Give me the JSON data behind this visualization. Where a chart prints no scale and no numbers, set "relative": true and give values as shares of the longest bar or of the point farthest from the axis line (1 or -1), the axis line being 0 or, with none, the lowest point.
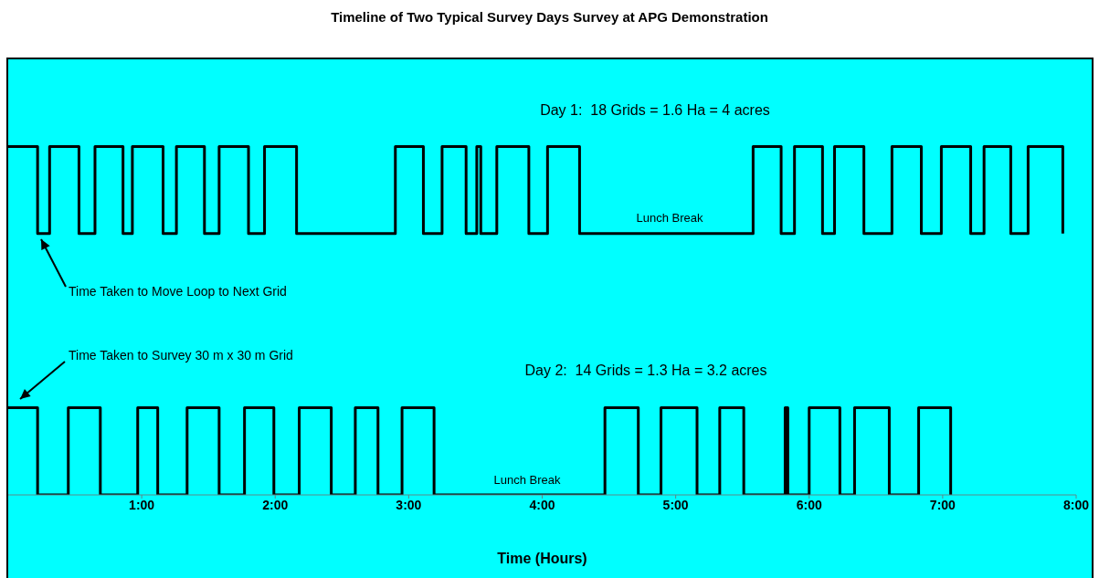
{
  "chart_data": {
    "type": "step",
    "title": "Timeline of Two Typical Survey Days Survey at APG Demonstration",
    "xlabel": "Time (Hours)",
    "relative": true,
    "xlim": [
      0,
      8
    ],
    "xticks": [
      {
        "value": 1,
        "label": "1:00"
      },
      {
        "value": 2,
        "label": "2:00"
      },
      {
        "value": 3,
        "label": "3:00"
      },
      {
        "value": 4,
        "label": "4:00"
      },
      {
        "value": 5,
        "label": "5:00"
      },
      {
        "value": 6,
        "label": "6:00"
      },
      {
        "value": 7,
        "label": "7:00"
      },
      {
        "value": 8,
        "label": "8:00"
      }
    ],
    "series": [
      {
        "color": "#000000",
        "x": [
          0,
          0.22,
          0.31,
          0.53,
          0.65,
          0.86,
          0.93,
          1.16,
          1.26,
          1.47,
          1.58,
          1.8,
          1.92,
          2.16,
          2.9,
          3.11,
          3.25,
          3.43,
          3.51,
          3.54,
          3.66,
          3.9,
          4.04,
          4.28,
          5.58,
          5.79,
          5.89,
          6.1,
          6.19,
          6.41,
          6.62,
          6.84,
          6.99,
          7.21,
          7.31,
          7.51,
          7.64,
          7.9
        ],
        "values": [
          1,
          0.75,
          1,
          0.75,
          1,
          0.75,
          1,
          0.75,
          1,
          0.75,
          1,
          0.75,
          1,
          0.75,
          1,
          0.75,
          1,
          0.75,
          1,
          0.75,
          1,
          0.75,
          1,
          0.75,
          1,
          0.75,
          1,
          0.75,
          1,
          0.75,
          1,
          0.75,
          1,
          0.75,
          1,
          0.75,
          1,
          0.75
        ]
      },
      {
        "color": "#000000",
        "x": [
          0,
          0.22,
          0.45,
          0.69,
          0.97,
          1.12,
          1.34,
          1.58,
          1.77,
          1.99,
          2.18,
          2.42,
          2.6,
          2.77,
          2.95,
          3.19,
          4.47,
          4.72,
          4.89,
          5.16,
          5.33,
          5.51,
          5.82,
          5.84,
          6.0,
          6.23,
          6.34,
          6.6,
          6.82,
          7.06
        ],
        "values": [
          0.25,
          0,
          0.25,
          0,
          0.25,
          0,
          0.25,
          0,
          0.25,
          0,
          0.25,
          0,
          0.25,
          0,
          0.25,
          0,
          0.25,
          0,
          0.25,
          0,
          0.25,
          0,
          0.25,
          0,
          0.25,
          0,
          0.25,
          0,
          0.25,
          0
        ]
      }
    ],
    "annotations": [
      "Day 1:  18 Grids = 1.6 Ha = 4 acres",
      "Lunch Break",
      "Time Taken to Move Loop to Next Grid",
      "Time Taken to Survey 30 m x 30 m Grid",
      "Day 2:  14 Grids = 1.3 Ha = 3.2 acres",
      "Lunch Break"
    ]
  }
}
